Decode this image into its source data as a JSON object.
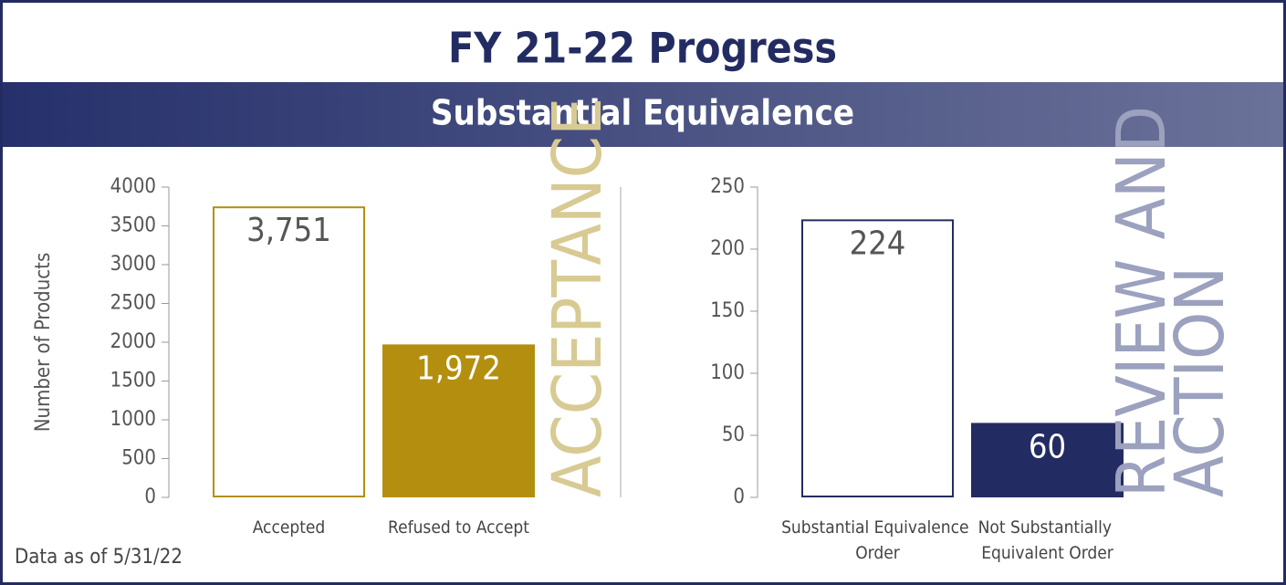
{
  "header": {
    "title": "FY 21-22 Progress",
    "subtitle": "Substantial Equivalence"
  },
  "footnote": "Data as of 5/31/22",
  "chart_data": [
    {
      "type": "bar",
      "side_label": "ACCEPTANCE",
      "ylabel": "Number of Products",
      "categories": [
        "Accepted",
        "Refused to Accept"
      ],
      "values": [
        3751,
        1972
      ],
      "value_labels": [
        "3,751",
        "1,972"
      ],
      "color": "#b48f0f",
      "side_label_color": "#d8ca93",
      "bar_styles": [
        "outline",
        "filled"
      ],
      "ylim": [
        0,
        4000
      ],
      "yticks": [
        0,
        500,
        1000,
        1500,
        2000,
        2500,
        3000,
        3500,
        4000
      ]
    },
    {
      "type": "bar",
      "side_label": "REVIEW AND ACTION",
      "categories": [
        "Substantial Equivalence Order",
        "Not Substantially Equivalent Order"
      ],
      "values": [
        224,
        60
      ],
      "value_labels": [
        "224",
        "60"
      ],
      "color": "#232c62",
      "side_label_color": "#9ba1be",
      "bar_styles": [
        "outline",
        "filled"
      ],
      "ylim": [
        0,
        250
      ],
      "yticks": [
        0,
        50,
        100,
        150,
        200,
        250
      ]
    }
  ]
}
